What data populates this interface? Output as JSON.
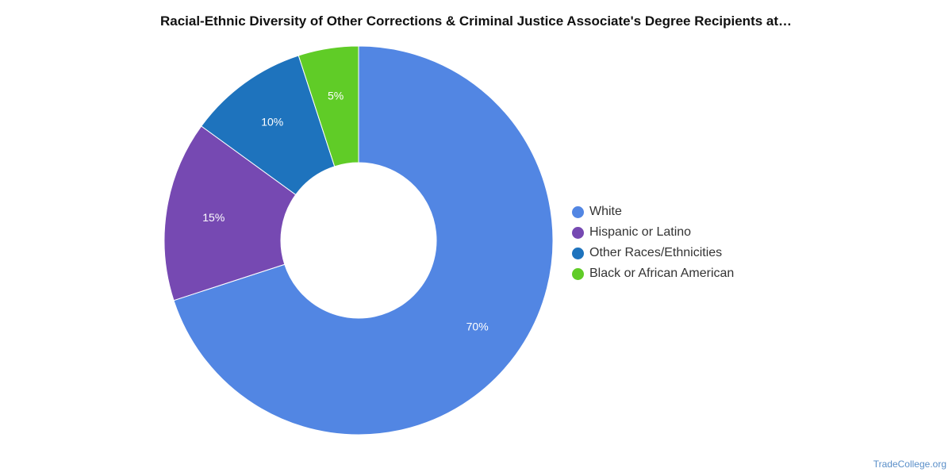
{
  "chart_data": {
    "type": "pie",
    "title": "Racial-Ethnic Diversity of Other Corrections & Criminal Justice Associate's Degree Recipients at…",
    "categories": [
      "White",
      "Hispanic or Latino",
      "Other Races/Ethnicities",
      "Black or African American"
    ],
    "values": [
      70,
      15,
      10,
      5
    ],
    "data_labels": [
      "70%",
      "15%",
      "10%",
      "5%"
    ],
    "colors": [
      "#5286e3",
      "#7649b2",
      "#1e73bd",
      "#60cc27"
    ],
    "donut": true,
    "legend_position": "right"
  },
  "credit": "TradeCollege.org"
}
